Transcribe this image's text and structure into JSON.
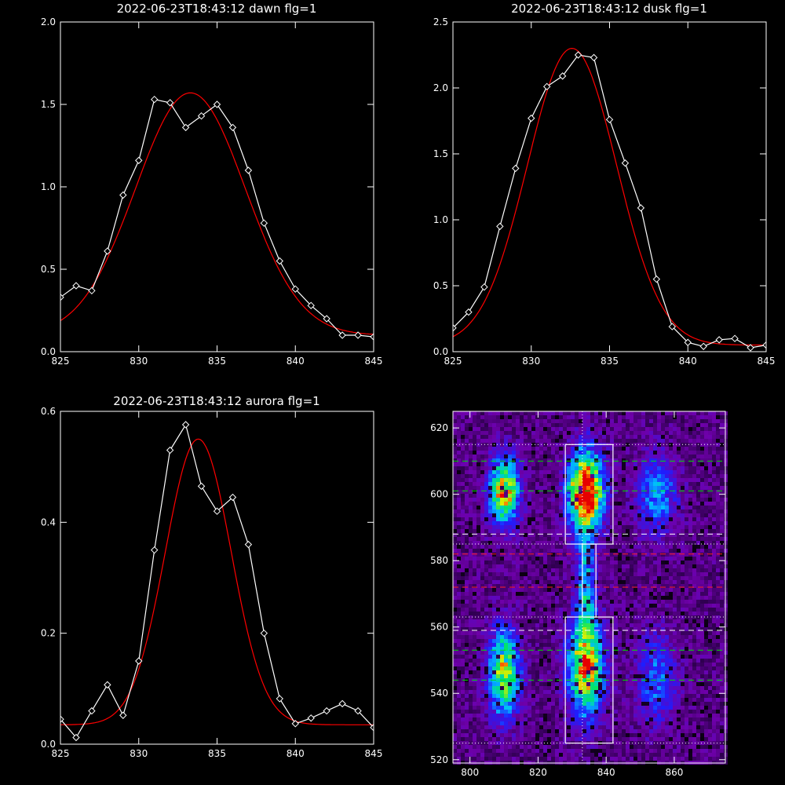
{
  "chart_data": [
    {
      "type": "line",
      "title": "2022-06-23T18:43:12 dawn flg=1",
      "xlim": [
        825,
        845
      ],
      "ylim": [
        0,
        2
      ],
      "xticks": [
        "825",
        "830",
        "835",
        "840",
        "845"
      ],
      "yticks": [
        "0.0",
        "0.5",
        "1.0",
        "1.5",
        "2.0"
      ],
      "series": [
        {
          "kind": "data",
          "color": "#ffffff",
          "x": [
            825,
            826,
            827,
            828,
            829,
            830,
            831,
            832,
            833,
            834,
            835,
            836,
            837,
            838,
            839,
            840,
            841,
            842,
            843,
            844,
            845
          ],
          "y": [
            0.33,
            0.4,
            0.37,
            0.61,
            0.95,
            1.16,
            1.53,
            1.51,
            1.36,
            1.43,
            1.5,
            1.36,
            1.1,
            0.78,
            0.55,
            0.38,
            0.28,
            0.2,
            0.1,
            0.1,
            0.09
          ]
        },
        {
          "kind": "fit",
          "color": "#ff0000",
          "gauss": {
            "amp": 1.47,
            "center": 833.3,
            "sigma": 3.5,
            "offset": 0.1
          }
        }
      ]
    },
    {
      "type": "line",
      "title": "2022-06-23T18:43:12 dusk flg=1",
      "xlim": [
        825,
        845
      ],
      "ylim": [
        0,
        2.5
      ],
      "xticks": [
        "825",
        "830",
        "835",
        "840",
        "845"
      ],
      "yticks": [
        "0.0",
        "0.5",
        "1.0",
        "1.5",
        "2.0",
        "2.5"
      ],
      "series": [
        {
          "kind": "data",
          "color": "#ffffff",
          "x": [
            825,
            826,
            827,
            828,
            829,
            830,
            831,
            832,
            833,
            834,
            835,
            836,
            837,
            838,
            839,
            840,
            841,
            842,
            843,
            844,
            845
          ],
          "y": [
            0.18,
            0.3,
            0.49,
            0.95,
            1.39,
            1.77,
            2.01,
            2.09,
            2.25,
            2.23,
            1.76,
            1.43,
            1.09,
            0.55,
            0.19,
            0.07,
            0.04,
            0.09,
            0.1,
            0.03,
            0.05
          ]
        },
        {
          "kind": "fit",
          "color": "#ff0000",
          "gauss": {
            "amp": 2.25,
            "center": 832.6,
            "sigma": 2.85,
            "offset": 0.05
          }
        }
      ]
    },
    {
      "type": "line",
      "title": "2022-06-23T18:43:12 aurora flg=1",
      "xlim": [
        825,
        845
      ],
      "ylim": [
        0,
        0.6
      ],
      "xticks": [
        "825",
        "830",
        "835",
        "840",
        "845"
      ],
      "yticks": [
        "0.0",
        "0.2",
        "0.4",
        "0.6"
      ],
      "series": [
        {
          "kind": "data",
          "color": "#ffffff",
          "x": [
            825,
            826,
            827,
            828,
            829,
            830,
            831,
            832,
            833,
            834,
            835,
            836,
            837,
            838,
            839,
            840,
            841,
            842,
            843,
            844,
            845
          ],
          "y": [
            0.045,
            0.012,
            0.06,
            0.107,
            0.052,
            0.15,
            0.35,
            0.53,
            0.576,
            0.465,
            0.42,
            0.445,
            0.36,
            0.2,
            0.082,
            0.037,
            0.047,
            0.06,
            0.073,
            0.06,
            0.03
          ]
        },
        {
          "kind": "fit",
          "color": "#ff0000",
          "gauss": {
            "amp": 0.515,
            "center": 833.8,
            "sigma": 2.1,
            "offset": 0.035
          }
        }
      ]
    },
    {
      "type": "heatmap",
      "title": "",
      "xlim": [
        795,
        875
      ],
      "ylim": [
        519,
        625
      ],
      "xticks": [
        "800",
        "820",
        "840",
        "860"
      ],
      "yticks": [
        "520",
        "540",
        "560",
        "580",
        "600",
        "620"
      ],
      "blobs": [
        {
          "x": 810,
          "y": 601,
          "sx": 3.0,
          "sy": 7,
          "amp": 0.72
        },
        {
          "x": 810,
          "y": 546,
          "sx": 3.2,
          "sy": 9,
          "amp": 0.62
        },
        {
          "x": 834,
          "y": 601,
          "sx": 3.5,
          "sy": 8,
          "amp": 1.0
        },
        {
          "x": 834,
          "y": 548,
          "sx": 3.6,
          "sy": 10,
          "amp": 0.72
        },
        {
          "x": 834,
          "y": 573,
          "sx": 2.0,
          "sy": 12,
          "amp": 0.35
        },
        {
          "x": 855,
          "y": 600,
          "sx": 4.0,
          "sy": 8,
          "amp": 0.33
        },
        {
          "x": 855,
          "y": 544,
          "sx": 4.0,
          "sy": 9,
          "amp": 0.28
        }
      ],
      "boxes": [
        {
          "x0": 828,
          "x1": 842,
          "y0": 585,
          "y1": 615
        },
        {
          "x0": 828,
          "x1": 842,
          "y0": 525,
          "y1": 563
        },
        {
          "x0": 833,
          "x1": 837,
          "y0": 563,
          "y1": 585
        }
      ],
      "hlines": [
        {
          "y": 615,
          "style": "dotted",
          "color": "#ffffff"
        },
        {
          "y": 610,
          "style": "dashed",
          "color": "#00e000"
        },
        {
          "y": 601,
          "style": "dashed",
          "color": "#00e000"
        },
        {
          "y": 588,
          "style": "dashed",
          "color": "#ffffff"
        },
        {
          "y": 585,
          "style": "dotted",
          "color": "#ffffff"
        },
        {
          "y": 582,
          "style": "dashed",
          "color": "#ff2020"
        },
        {
          "y": 572,
          "style": "dashed",
          "color": "#ff2020"
        },
        {
          "y": 563,
          "style": "dotted",
          "color": "#ffffff"
        },
        {
          "y": 559,
          "style": "dashed",
          "color": "#ffffff"
        },
        {
          "y": 553,
          "style": "dashed",
          "color": "#00e000"
        },
        {
          "y": 544,
          "style": "dashed",
          "color": "#00e000"
        },
        {
          "y": 525,
          "style": "dotted",
          "color": "#ffffff"
        }
      ],
      "vline": {
        "x": 833,
        "style": "dotted",
        "color": "#ffffff"
      }
    }
  ]
}
